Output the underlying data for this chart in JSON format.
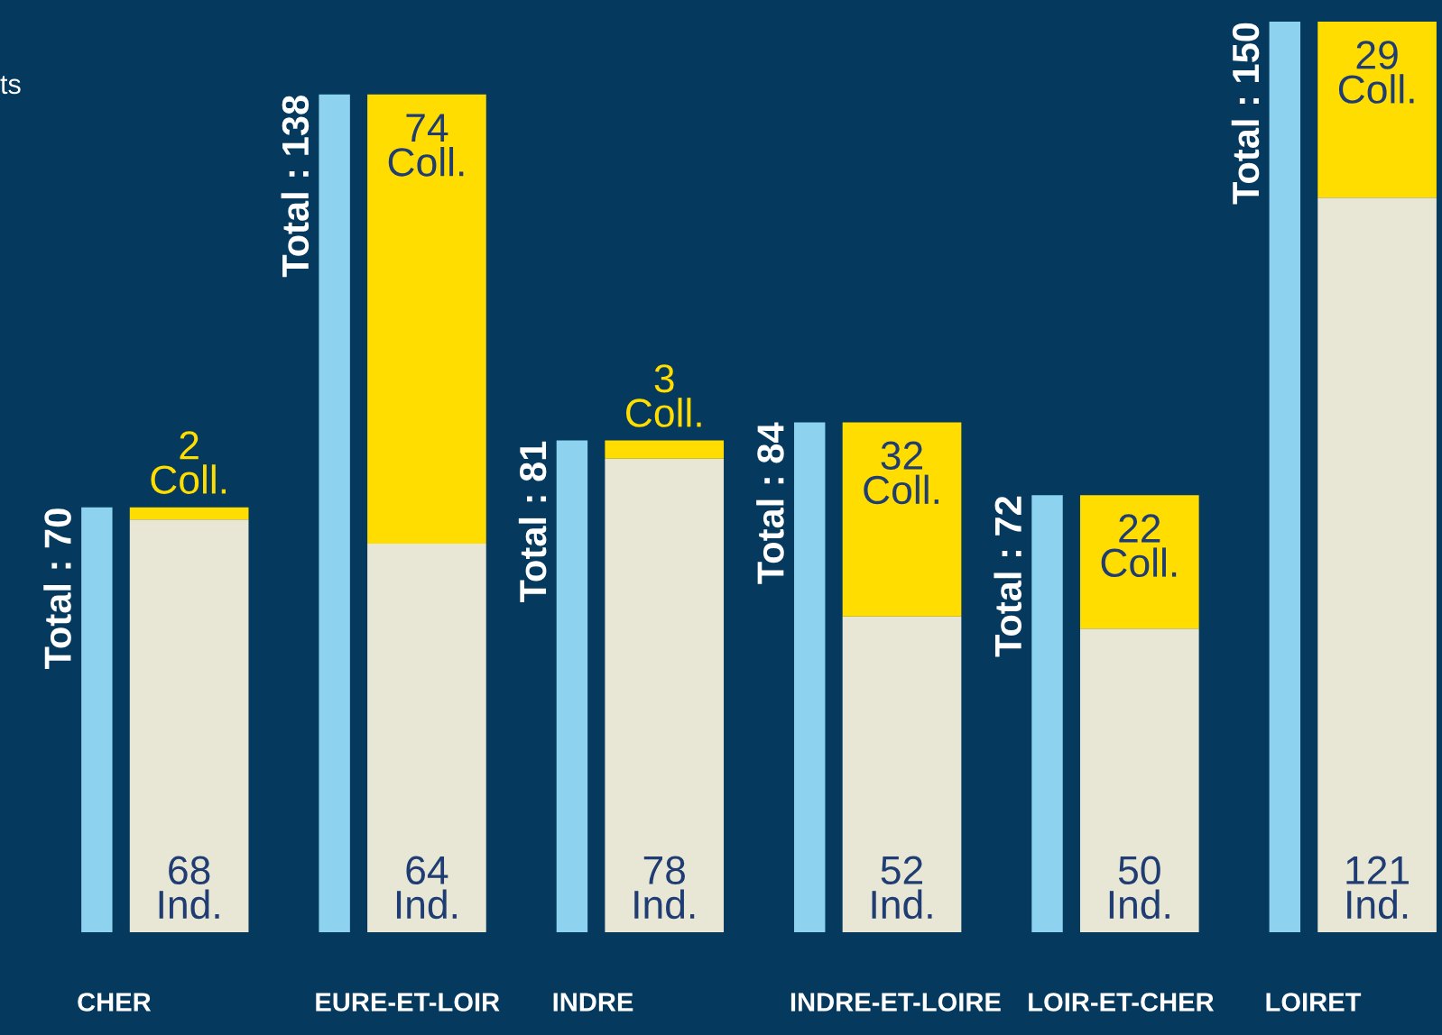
{
  "chart_data": {
    "type": "bar",
    "stacked": true,
    "categories": [
      "CHER",
      "EURE-ET-LOIR",
      "INDRE",
      "INDRE-ET-LOIRE",
      "LOIR-ET-CHER",
      "LOIRET"
    ],
    "series": [
      {
        "color": "#8dd3f0",
        "axis": "y2",
        "values": [
          70,
          138,
          81,
          84,
          72,
          150
        ],
        "value_labels": [
          "Total : 70",
          "Total : 138",
          "Total : 81",
          "Total : 84",
          "Total : 72",
          "Total : 150"
        ]
      },
      {
        "color": "#e8e6d5",
        "values": [
          68,
          64,
          78,
          52,
          50,
          121
        ],
        "value_labels": [
          "68\nInd.",
          "64\nInd.",
          "78\nInd.",
          "52\nInd.",
          "50\nInd.",
          "121\nInd."
        ]
      },
      {
        "color": "#ffdd00",
        "values": [
          2,
          74,
          3,
          32,
          22,
          29
        ],
        "value_labels": [
          "2\nColl.",
          "74\nColl.",
          "3\nColl.",
          "32\nColl.",
          "22\nColl.",
          "29\nColl."
        ]
      }
    ],
    "annotations": [
      "ts"
    ]
  }
}
